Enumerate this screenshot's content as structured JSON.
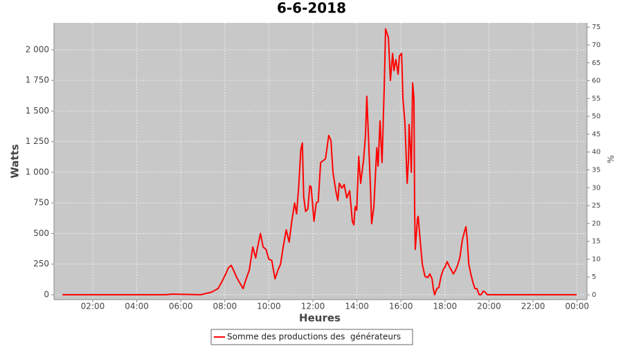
{
  "chart_data": {
    "type": "line",
    "title": "6-6-2018",
    "x_label": "Heures",
    "y_label": "Watts",
    "y2_label": "%",
    "xlim": [
      0.24,
      24.45
    ],
    "ylim": [
      -40,
      2220
    ],
    "y2lim": [
      -1.35,
      76.2
    ],
    "xticks": [
      {
        "value": 2,
        "label": "02:00"
      },
      {
        "value": 4,
        "label": "04:00"
      },
      {
        "value": 6,
        "label": "06:00"
      },
      {
        "value": 8,
        "label": "08:00"
      },
      {
        "value": 10,
        "label": "10:00"
      },
      {
        "value": 12,
        "label": "12:00"
      },
      {
        "value": 14,
        "label": "14:00"
      },
      {
        "value": 16,
        "label": "16:00"
      },
      {
        "value": 18,
        "label": "18:00"
      },
      {
        "value": 20,
        "label": "20:00"
      },
      {
        "value": 22,
        "label": "22:00"
      },
      {
        "value": 24,
        "label": "00:00"
      }
    ],
    "yticks": [
      0,
      250,
      500,
      750,
      {
        "value": 1000,
        "label": "1 000"
      },
      {
        "value": 1250,
        "label": "1 250"
      },
      {
        "value": 1500,
        "label": "1 500"
      },
      {
        "value": 1750,
        "label": "1 750"
      },
      {
        "value": 2000,
        "label": "2 000"
      }
    ],
    "y2ticks": [
      0,
      5,
      10,
      15,
      20,
      25,
      30,
      35,
      40,
      45,
      50,
      55,
      60,
      65,
      70,
      75
    ],
    "grid": true,
    "x": [
      0.62,
      5.33,
      5.6,
      6.9,
      7.38,
      7.69,
      7.85,
      8.04,
      8.16,
      8.29,
      8.42,
      8.54,
      8.67,
      8.83,
      8.95,
      9.11,
      9.27,
      9.4,
      9.49,
      9.62,
      9.74,
      9.87,
      10.0,
      10.13,
      10.28,
      10.41,
      10.53,
      10.66,
      10.79,
      10.92,
      11.04,
      11.17,
      11.26,
      11.36,
      11.45,
      11.52,
      11.58,
      11.67,
      11.77,
      11.86,
      11.92,
      12.05,
      12.15,
      12.24,
      12.35,
      12.57,
      12.72,
      12.82,
      12.91,
      13.04,
      13.13,
      13.2,
      13.32,
      13.42,
      13.54,
      13.67,
      13.79,
      13.86,
      13.92,
      13.99,
      14.08,
      14.17,
      14.3,
      14.39,
      14.45,
      14.52,
      14.61,
      14.67,
      14.77,
      14.9,
      14.96,
      15.05,
      15.14,
      15.24,
      15.3,
      15.43,
      15.52,
      15.62,
      15.68,
      15.77,
      15.87,
      15.93,
      16.03,
      16.09,
      16.18,
      16.28,
      16.34,
      16.37,
      16.43,
      16.47,
      16.53,
      16.59,
      16.62,
      16.65,
      16.75,
      16.78,
      16.87,
      16.97,
      17.09,
      17.22,
      17.31,
      17.41,
      17.47,
      17.53,
      17.63,
      17.72,
      17.82,
      17.91,
      18.01,
      18.1,
      18.2,
      18.29,
      18.38,
      18.48,
      18.57,
      18.67,
      18.79,
      18.89,
      18.95,
      19.01,
      19.08,
      19.17,
      19.27,
      19.36,
      19.45,
      19.55,
      19.64,
      19.74,
      19.83,
      19.92,
      23.98
    ],
    "series": [
      {
        "name": "Somme des productions des  générateurs",
        "color": "#ff0000",
        "values": [
          0,
          0,
          5,
          0,
          20,
          50,
          100,
          170,
          220,
          240,
          190,
          140,
          100,
          50,
          120,
          200,
          390,
          300,
          390,
          500,
          390,
          370,
          290,
          280,
          130,
          200,
          250,
          400,
          530,
          430,
          600,
          750,
          660,
          900,
          1180,
          1240,
          800,
          680,
          700,
          890,
          880,
          600,
          750,
          760,
          1080,
          1110,
          1300,
          1260,
          1000,
          850,
          770,
          910,
          870,
          900,
          790,
          850,
          600,
          570,
          720,
          690,
          1130,
          910,
          1100,
          1300,
          1620,
          1300,
          900,
          580,
          720,
          1200,
          1050,
          1420,
          1080,
          1700,
          2170,
          2100,
          1750,
          1970,
          1830,
          1920,
          1800,
          1950,
          1970,
          1600,
          1400,
          910,
          1100,
          1390,
          1200,
          1000,
          1730,
          1600,
          700,
          370,
          620,
          640,
          450,
          250,
          150,
          140,
          170,
          130,
          50,
          0,
          50,
          60,
          150,
          200,
          230,
          270,
          230,
          200,
          170,
          200,
          240,
          300,
          450,
          520,
          555,
          450,
          250,
          170,
          100,
          50,
          50,
          0,
          0,
          30,
          20,
          0,
          0
        ]
      }
    ]
  }
}
